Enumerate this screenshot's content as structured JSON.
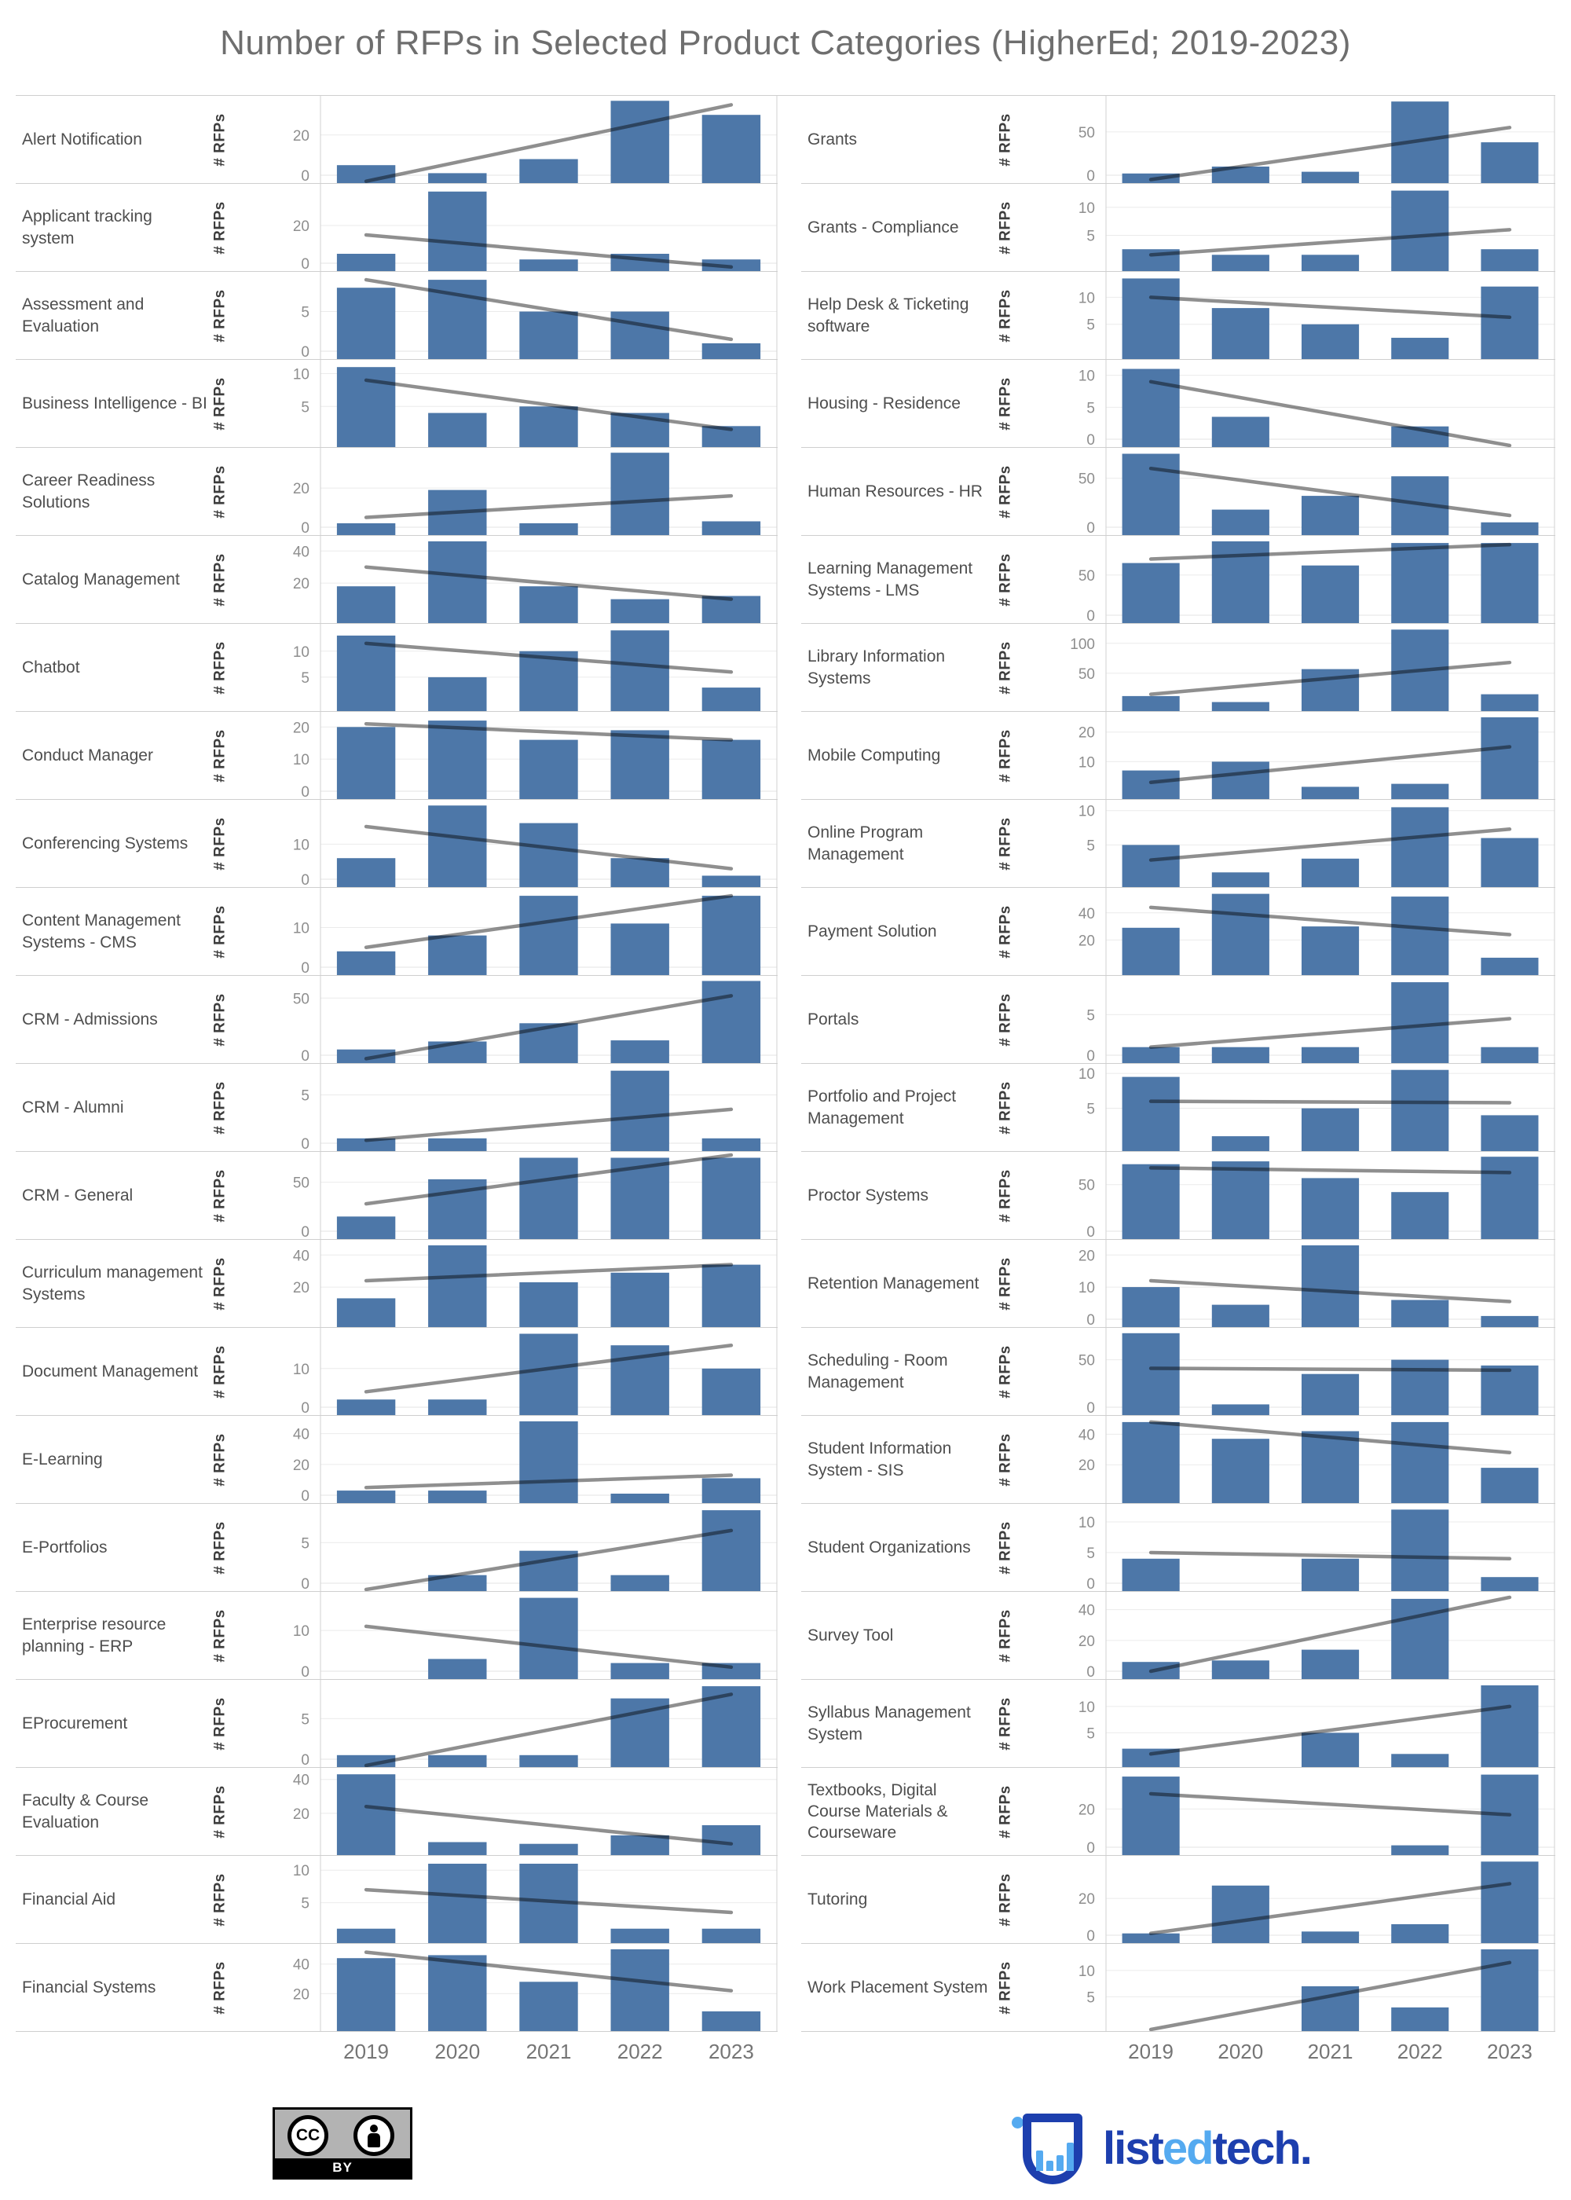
{
  "title": "Number of RFPs in Selected Product Categories (HigherEd; 2019-2023)",
  "axis": {
    "y_title": "# RFPs"
  },
  "colors": {
    "bar": "#4d77a8",
    "trend": "#8f8f8f",
    "grid": "#ebebeb",
    "separator": "#cfcfcf",
    "tick_label": "#8e8e8e",
    "category_label": "#4e4e4e",
    "title": "#6e6e6e",
    "year_label": "#757575",
    "logo_dark": "#1d3fae",
    "logo_light": "#55aaf0"
  },
  "chart_data": {
    "type": "bar",
    "x": [
      "2019",
      "2020",
      "2021",
      "2022",
      "2023"
    ],
    "note": "Each panel is a small-multiple bar chart of # RFPs per year with a linear trend line; trend gives estimated line value at 2019 and 2023.",
    "columns": [
      {
        "panels": [
          {
            "category": "Alert Notification",
            "ticks": [
              0,
              20
            ],
            "axis_max": 37.5,
            "values": [
              5,
              1,
              8,
              37,
              30
            ],
            "trend": [
              -3,
              35
            ]
          },
          {
            "category": "Applicant tracking system",
            "ticks": [
              0,
              20
            ],
            "axis_max": 40,
            "values": [
              5,
              38,
              2,
              5,
              2
            ],
            "trend": [
              15,
              -2
            ]
          },
          {
            "category": "Assessment and Evaluation",
            "ticks": [
              0,
              5
            ],
            "axis_max": 9.5,
            "values": [
              8,
              9,
              5,
              5,
              1
            ],
            "trend": [
              9,
              1.5
            ]
          },
          {
            "category": "Business Intelligence - BI",
            "ticks": [
              5,
              10
            ],
            "axis_max": 11.5,
            "values": [
              11,
              4,
              5,
              4,
              2
            ],
            "trend": [
              9,
              1.5
            ]
          },
          {
            "category": "Career Readiness Solutions",
            "ticks": [
              0,
              20
            ],
            "axis_max": 38.5,
            "values": [
              2,
              19,
              2,
              38,
              3
            ],
            "trend": [
              5,
              16
            ]
          },
          {
            "category": "Catalog Management",
            "ticks": [
              20,
              40
            ],
            "axis_max": 47,
            "values": [
              18,
              46,
              18,
              10,
              12
            ],
            "trend": [
              30,
              10
            ]
          },
          {
            "category": "Chatbot",
            "ticks": [
              5,
              10
            ],
            "axis_max": 14.5,
            "values": [
              13,
              5,
              10,
              14,
              3
            ],
            "trend": [
              11.5,
              6
            ]
          },
          {
            "category": "Conduct Manager",
            "ticks": [
              0,
              10,
              20
            ],
            "axis_max": 23.5,
            "values": [
              20,
              22,
              16,
              19,
              16
            ],
            "trend": [
              21,
              16
            ]
          },
          {
            "category": "Conferencing Systems",
            "ticks": [
              0,
              10
            ],
            "axis_max": 21.5,
            "values": [
              6,
              21,
              16,
              6,
              1
            ],
            "trend": [
              15,
              3
            ]
          },
          {
            "category": "Content Management Systems - CMS",
            "ticks": [
              0,
              10
            ],
            "axis_max": 19,
            "values": [
              4,
              8,
              18,
              11,
              18
            ],
            "trend": [
              5,
              18
            ]
          },
          {
            "category": "CRM - Admissions",
            "ticks": [
              0,
              50
            ],
            "axis_max": 66,
            "values": [
              5,
              12,
              28,
              13,
              65
            ],
            "trend": [
              -3,
              52
            ]
          },
          {
            "category": "CRM - Alumni",
            "ticks": [
              0,
              5
            ],
            "axis_max": 7.8,
            "values": [
              0.5,
              0.5,
              0,
              7.5,
              0.5
            ],
            "trend": [
              0.3,
              3.5
            ]
          },
          {
            "category": "CRM - General",
            "ticks": [
              0,
              50
            ],
            "axis_max": 77,
            "values": [
              15,
              53,
              75,
              75,
              75
            ],
            "trend": [
              28,
              80
            ]
          },
          {
            "category": "Curriculum management Systems",
            "ticks": [
              20,
              40
            ],
            "axis_max": 47,
            "values": [
              13,
              46,
              23,
              29,
              34
            ],
            "trend": [
              24,
              34
            ]
          },
          {
            "category": "Document Management",
            "ticks": [
              0,
              10
            ],
            "axis_max": 19.5,
            "values": [
              2,
              2,
              19,
              16,
              10
            ],
            "trend": [
              4,
              16
            ]
          },
          {
            "category": "E-Learning",
            "ticks": [
              0,
              20,
              40
            ],
            "axis_max": 49,
            "values": [
              3,
              3,
              48,
              1,
              11
            ],
            "trend": [
              5,
              13
            ]
          },
          {
            "category": "E-Portfolios",
            "ticks": [
              0,
              5
            ],
            "axis_max": 9.3,
            "values": [
              0,
              1,
              4,
              1,
              9
            ],
            "trend": [
              -2,
              6.5
            ]
          },
          {
            "category": "Enterprise resource planning - ERP",
            "ticks": [
              0,
              10
            ],
            "axis_max": 18.5,
            "values": [
              0,
              3,
              18,
              2,
              2
            ],
            "trend": [
              11,
              1
            ]
          },
          {
            "category": "EProcurement",
            "ticks": [
              0,
              5
            ],
            "axis_max": 9.3,
            "values": [
              0.5,
              0.5,
              0.5,
              7.5,
              9
            ],
            "trend": [
              -1.5,
              8
            ]
          },
          {
            "category": "Faculty & Course Evaluation",
            "ticks": [
              20,
              40
            ],
            "axis_max": 44.5,
            "values": [
              43,
              3,
              2,
              7,
              13
            ],
            "trend": [
              24,
              2
            ]
          },
          {
            "category": "Financial Aid",
            "ticks": [
              5,
              10
            ],
            "axis_max": 11.6,
            "values": [
              1,
              11,
              11,
              1,
              1
            ],
            "trend": [
              7,
              3.5
            ]
          },
          {
            "category": "Financial Systems",
            "ticks": [
              20,
              40
            ],
            "axis_max": 51,
            "values": [
              44,
              46,
              28,
              50,
              8
            ],
            "trend": [
              48,
              22
            ]
          }
        ]
      },
      {
        "panels": [
          {
            "category": "Grants",
            "ticks": [
              0,
              50
            ],
            "axis_max": 87,
            "values": [
              2,
              10,
              4,
              85,
              38
            ],
            "trend": [
              -5,
              55
            ]
          },
          {
            "category": "Grants - Compliance",
            "ticks": [
              5,
              10
            ],
            "axis_max": 13.5,
            "values": [
              2.5,
              1.5,
              1.5,
              13,
              2.5
            ],
            "trend": [
              1.5,
              6
            ]
          },
          {
            "category": "Help Desk & Ticketing software",
            "ticks": [
              5,
              10
            ],
            "axis_max": 14,
            "values": [
              13.5,
              8,
              5,
              2.5,
              12
            ],
            "trend": [
              10,
              6.3
            ]
          },
          {
            "category": "Housing - Residence",
            "ticks": [
              0,
              5,
              10
            ],
            "axis_max": 11.8,
            "values": [
              11,
              3.5,
              0,
              2,
              0
            ],
            "trend": [
              9,
              -1
            ]
          },
          {
            "category": "Human Resources - HR",
            "ticks": [
              0,
              50
            ],
            "axis_max": 77,
            "values": [
              75,
              18,
              32,
              52,
              5
            ],
            "trend": [
              60,
              12
            ]
          },
          {
            "category": "Learning Management Systems - LMS",
            "ticks": [
              0,
              50
            ],
            "axis_max": 94,
            "values": [
              65,
              92,
              62,
              90,
              90
            ],
            "trend": [
              70,
              88
            ]
          },
          {
            "category": "Library Information Systems",
            "ticks": [
              50,
              100
            ],
            "axis_max": 126,
            "values": [
              12,
              2,
              57,
              123,
              15
            ],
            "trend": [
              15,
              68
            ]
          },
          {
            "category": "Mobile Computing",
            "ticks": [
              10,
              20
            ],
            "axis_max": 25.5,
            "values": [
              7,
              10,
              1.5,
              2.5,
              25
            ],
            "trend": [
              3,
              15
            ]
          },
          {
            "category": "Online Program Management",
            "ticks": [
              5,
              10
            ],
            "axis_max": 11,
            "values": [
              5,
              1,
              3,
              10.5,
              6
            ],
            "trend": [
              2.8,
              7.3
            ]
          },
          {
            "category": "Payment Solution",
            "ticks": [
              20,
              40
            ],
            "axis_max": 55.5,
            "values": [
              29,
              54,
              30,
              52,
              7
            ],
            "trend": [
              44,
              24
            ]
          },
          {
            "category": "Portals",
            "ticks": [
              0,
              5
            ],
            "axis_max": 9.3,
            "values": [
              1,
              1,
              1,
              9,
              1
            ],
            "trend": [
              1,
              4.5
            ]
          },
          {
            "category": "Portfolio and Project Management",
            "ticks": [
              5,
              10
            ],
            "axis_max": 10.8,
            "values": [
              9.5,
              1,
              5,
              10.5,
              4
            ],
            "trend": [
              6,
              5.8
            ]
          },
          {
            "category": "Proctor Systems",
            "ticks": [
              0,
              50
            ],
            "axis_max": 81,
            "values": [
              72,
              75,
              57,
              42,
              80
            ],
            "trend": [
              68,
              63
            ]
          },
          {
            "category": "Retention Management",
            "ticks": [
              0,
              10,
              20
            ],
            "axis_max": 23.5,
            "values": [
              10,
              4.5,
              23,
              6,
              1
            ],
            "trend": [
              12,
              5.5
            ]
          },
          {
            "category": "Scheduling - Room Management",
            "ticks": [
              0,
              50
            ],
            "axis_max": 79.5,
            "values": [
              78,
              3,
              35,
              50,
              44
            ],
            "trend": [
              41,
              39
            ]
          },
          {
            "category": "Student Information System - SIS",
            "ticks": [
              20,
              40
            ],
            "axis_max": 49.5,
            "values": [
              48,
              37,
              42,
              48,
              18
            ],
            "trend": [
              48,
              28
            ]
          },
          {
            "category": "Student Organizations",
            "ticks": [
              0,
              5,
              10
            ],
            "axis_max": 12.3,
            "values": [
              4,
              0,
              4,
              12,
              1
            ],
            "trend": [
              5,
              4
            ]
          },
          {
            "category": "Survey Tool",
            "ticks": [
              0,
              20,
              40
            ],
            "axis_max": 49,
            "values": [
              6,
              7,
              14,
              47,
              0
            ],
            "trend": [
              0,
              48
            ]
          },
          {
            "category": "Syllabus Management System",
            "ticks": [
              5,
              10
            ],
            "axis_max": 14.3,
            "values": [
              2,
              0,
              5,
              1,
              14
            ],
            "trend": [
              1,
              10
            ]
          },
          {
            "category": "Textbooks, Digital Course Materials & Courseware",
            "ticks": [
              0,
              20
            ],
            "axis_max": 39.5,
            "values": [
              37,
              0,
              0,
              1,
              38
            ],
            "trend": [
              28,
              17
            ]
          },
          {
            "category": "Tutoring",
            "ticks": [
              0,
              20
            ],
            "axis_max": 41,
            "values": [
              1,
              27,
              2,
              6,
              40
            ],
            "trend": [
              1,
              28
            ]
          },
          {
            "category": "Work Placement System",
            "ticks": [
              5,
              10
            ],
            "axis_max": 14.3,
            "values": [
              0,
              0,
              7,
              3,
              14
            ],
            "trend": [
              -5,
              11.5
            ]
          }
        ]
      }
    ]
  },
  "footer": {
    "cc_text": "CC",
    "cc_by": "BY",
    "logo": {
      "parts": [
        {
          "text": "list",
          "tone": "dark"
        },
        {
          "text": "ed",
          "tone": "light"
        },
        {
          "text": "tech",
          "tone": "dark"
        },
        {
          "text": ".",
          "tone": "dark"
        }
      ]
    }
  }
}
